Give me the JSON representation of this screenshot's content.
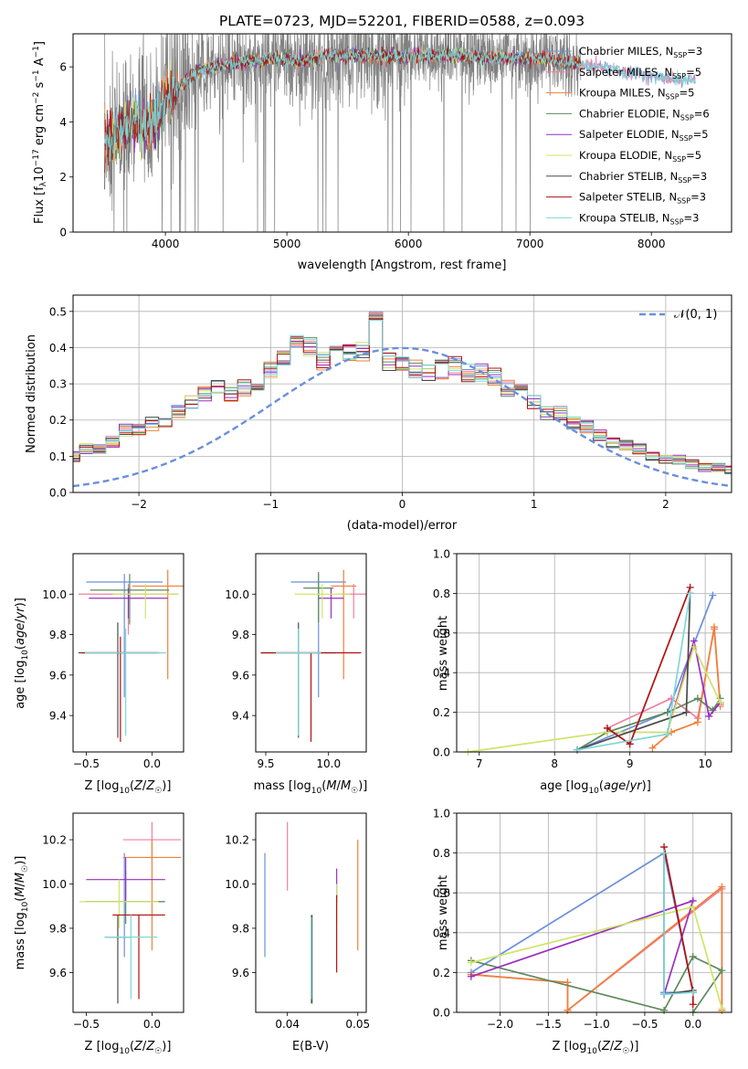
{
  "figure": {
    "title": "PLATE=0723, MJD=52201, FIBERID=0588, z=0.093"
  },
  "colors": {
    "Chabrier MILES": "#6a8fdc",
    "Salpeter MILES": "#f07fa0",
    "Kroupa MILES": "#f08038",
    "Chabrier ELODIE": "#5b8a5c",
    "Salpeter ELODIE": "#9a2fbf",
    "Kroupa ELODIE": "#cfe46a",
    "Chabrier STELIB": "#4a4a4a",
    "Salpeter STELIB": "#b01010",
    "Kroupa STELIB": "#7ed8d8",
    "data": "#808080"
  },
  "chart_data": [
    {
      "id": "spectrum",
      "type": "line",
      "xlabel": "wavelength [Angstrom, rest frame]",
      "ylabel": "Flux [f_λ 10^-17 erg cm^-2 s^-1 A^-1]",
      "xlim": [
        3240,
        8660
      ],
      "ylim": [
        0,
        7.2
      ],
      "xticks": [
        4000,
        5000,
        6000,
        7000,
        8000
      ],
      "yticks": [
        0,
        2,
        4,
        6
      ],
      "legend_placement": "right",
      "legend": [
        {
          "name": "Chabrier MILES",
          "nssp": "3"
        },
        {
          "name": "Salpeter MILES",
          "nssp": "5"
        },
        {
          "name": "Kroupa MILES",
          "nssp": "5"
        },
        {
          "name": "Chabrier ELODIE",
          "nssp": "6"
        },
        {
          "name": "Salpeter ELODIE",
          "nssp": "5"
        },
        {
          "name": "Kroupa ELODIE",
          "nssp": "5"
        },
        {
          "name": "Chabrier STELIB",
          "nssp": "3"
        },
        {
          "name": "Salpeter STELIB",
          "nssp": "3"
        },
        {
          "name": "Kroupa STELIB",
          "nssp": "3"
        }
      ],
      "continuum": {
        "x": [
          3500,
          3600,
          3700,
          3800,
          3900,
          4000,
          4100,
          4200,
          4300,
          4500,
          4700,
          4900,
          5100,
          5300,
          5600,
          6000,
          6400,
          6800,
          7100,
          7400,
          7600,
          7800,
          8000,
          8200,
          8400
        ],
        "y": [
          3.1,
          3.6,
          3.9,
          3.8,
          4.0,
          4.8,
          5.2,
          5.6,
          5.9,
          6.1,
          6.2,
          6.3,
          6.2,
          6.4,
          6.4,
          6.4,
          6.4,
          6.3,
          6.3,
          6.1,
          6.0,
          5.8,
          5.7,
          5.5,
          5.5
        ]
      },
      "data_range": [
        3500,
        7420
      ],
      "model_range": [
        3500,
        8360
      ]
    },
    {
      "id": "residuals",
      "type": "line",
      "xlabel": "(data-model)/error",
      "ylabel": "Normed distribution",
      "xlim": [
        -2.5,
        2.5
      ],
      "ylim": [
        0,
        0.545
      ],
      "xticks": [
        -2,
        -1,
        0,
        1,
        2
      ],
      "yticks": [
        0.0,
        0.1,
        0.2,
        0.3,
        0.4,
        0.5
      ],
      "legend_placement": "top-right",
      "reference": {
        "name": "𝒩(0, 1)",
        "mean": 0,
        "sigma": 1
      },
      "bin_width": 0.1,
      "base_hist": [
        0.03,
        0.03,
        0.04,
        0.04,
        0.04,
        0.05,
        0.05,
        0.06,
        0.07,
        0.08,
        0.09,
        0.1,
        0.12,
        0.12,
        0.14,
        0.17,
        0.17,
        0.19,
        0.19,
        0.22,
        0.25,
        0.27,
        0.29,
        0.27,
        0.29,
        0.3,
        0.34,
        0.37,
        0.43,
        0.4,
        0.36,
        0.41,
        0.38,
        0.39,
        0.49,
        0.36,
        0.35,
        0.34,
        0.33,
        0.34,
        0.35,
        0.33,
        0.33,
        0.32,
        0.29,
        0.28,
        0.25,
        0.22,
        0.22,
        0.19,
        0.18,
        0.16,
        0.14,
        0.13,
        0.12,
        0.1,
        0.09,
        0.09,
        0.08,
        0.07,
        0.07,
        0.06,
        0.06,
        0.05,
        0.05,
        0.04,
        0.04,
        0.03,
        0.03,
        0.03,
        0.03,
        0.02,
        0.02
      ]
    },
    {
      "id": "age-vs-Z",
      "type": "scatter",
      "xlabel": "Z [log10(Z/Z☉)]",
      "ylabel": "age  [log10(age/yr)]",
      "xlim": [
        -0.6,
        0.24
      ],
      "ylim": [
        9.22,
        10.2
      ],
      "xticks": [
        -0.5,
        0.0
      ],
      "yticks": [
        9.4,
        9.6,
        9.8,
        10.0
      ],
      "points": [
        {
          "model": "Chabrier MILES",
          "x": -0.21,
          "y": 10.06,
          "xerr": 0.29,
          "yerr": [
            0.57,
            0.04
          ]
        },
        {
          "model": "Salpeter MILES",
          "x": -0.18,
          "y": 10.0,
          "xerr": 0.38,
          "yerr": [
            0.2,
            0.05
          ]
        },
        {
          "model": "Kroupa MILES",
          "x": 0.12,
          "y": 10.04,
          "xerr": 0.27,
          "yerr": [
            0.46,
            0.08
          ]
        },
        {
          "model": "Chabrier ELODIE",
          "x": -0.17,
          "y": 10.02,
          "xerr": 0.3,
          "yerr": [
            0.17,
            0.08
          ]
        },
        {
          "model": "Salpeter ELODIE",
          "x": -0.18,
          "y": 9.98,
          "xerr": 0.3,
          "yerr": [
            0.1,
            0.05
          ]
        },
        {
          "model": "Kroupa ELODIE",
          "x": -0.05,
          "y": 10.0,
          "xerr": 0.25,
          "yerr": [
            0.12,
            0.05
          ]
        },
        {
          "model": "Chabrier STELIB",
          "x": -0.26,
          "y": 9.71,
          "xerr": 0.3,
          "yerr": [
            0.42,
            0.15
          ]
        },
        {
          "model": "Salpeter STELIB",
          "x": -0.24,
          "y": 9.71,
          "xerr": 0.3,
          "yerr": [
            0.44,
            0.08
          ]
        },
        {
          "model": "Kroupa STELIB",
          "x": -0.2,
          "y": 9.71,
          "xerr": 0.31,
          "yerr": [
            0.41,
            0.12
          ]
        }
      ]
    },
    {
      "id": "age-vs-mass",
      "type": "scatter",
      "xlabel": "mass [log10(M/M☉)]",
      "ylabel": "",
      "xlim": [
        9.42,
        10.3
      ],
      "ylim": [
        9.22,
        10.2
      ],
      "xticks": [
        9.5,
        10.0
      ],
      "yticks": [
        9.4,
        9.6,
        9.8,
        10.0
      ],
      "points": [
        {
          "model": "Chabrier MILES",
          "x": 9.92,
          "y": 10.06,
          "xerr": 0.22,
          "yerr": [
            0.57,
            0.04
          ]
        },
        {
          "model": "Salpeter MILES",
          "x": 10.2,
          "y": 10.0,
          "xerr": 0.1,
          "yerr": [
            0.12,
            0.05
          ]
        },
        {
          "model": "Kroupa MILES",
          "x": 10.12,
          "y": 10.04,
          "xerr": 0.1,
          "yerr": [
            0.46,
            0.08
          ]
        },
        {
          "model": "Chabrier ELODIE",
          "x": 9.92,
          "y": 10.03,
          "xerr": 0.12,
          "yerr": [
            0.17,
            0.08
          ]
        },
        {
          "model": "Salpeter ELODIE",
          "x": 10.02,
          "y": 9.98,
          "xerr": 0.1,
          "yerr": [
            0.1,
            0.05
          ]
        },
        {
          "model": "Kroupa ELODIE",
          "x": 9.95,
          "y": 10.0,
          "xerr": 0.22,
          "yerr": [
            0.12,
            0.05
          ]
        },
        {
          "model": "Chabrier STELIB",
          "x": 9.76,
          "y": 9.71,
          "xerr": 0.3,
          "yerr": [
            0.42,
            0.15
          ]
        },
        {
          "model": "Salpeter STELIB",
          "x": 9.86,
          "y": 9.71,
          "xerr": 0.4,
          "yerr": [
            0.44,
            0.0
          ]
        },
        {
          "model": "Kroupa STELIB",
          "x": 9.76,
          "y": 9.71,
          "xerr": 0.18,
          "yerr": [
            0.41,
            0.12
          ]
        }
      ]
    },
    {
      "id": "weight-vs-age",
      "type": "line",
      "xlabel": "age  [log10(age/yr)]",
      "ylabel": "mass weight",
      "xlim": [
        6.7,
        10.35
      ],
      "ylim": [
        0,
        1.0
      ],
      "xticks": [
        7,
        8,
        9,
        10
      ],
      "yticks": [
        0.0,
        0.2,
        0.4,
        0.6,
        0.8,
        1.0
      ],
      "series": [
        {
          "model": "Chabrier MILES",
          "x": [
            8.3,
            9.5,
            10.1
          ],
          "y": [
            0.01,
            0.2,
            0.79
          ]
        },
        {
          "model": "Salpeter MILES",
          "x": [
            8.7,
            9.55,
            9.9,
            10.12,
            10.2
          ],
          "y": [
            0.12,
            0.27,
            0.17,
            0.62,
            0.23
          ]
        },
        {
          "model": "Kroupa MILES",
          "x": [
            9.3,
            9.55,
            9.9,
            10.12,
            10.2
          ],
          "y": [
            0.02,
            0.1,
            0.15,
            0.63,
            0.24
          ]
        },
        {
          "model": "Chabrier ELODIE",
          "x": [
            8.3,
            8.7,
            9.5,
            9.9,
            10.1,
            10.2
          ],
          "y": [
            0.01,
            0.1,
            0.2,
            0.27,
            0.21,
            0.27
          ]
        },
        {
          "model": "Salpeter ELODIE",
          "x": [
            8.7,
            9.5,
            9.85,
            10.05,
            10.2
          ],
          "y": [
            0.1,
            0.1,
            0.56,
            0.18,
            0.25
          ]
        },
        {
          "model": "Kroupa ELODIE",
          "x": [
            6.85,
            8.7,
            9.5,
            9.85,
            10.2
          ],
          "y": [
            0.0,
            0.1,
            0.1,
            0.53,
            0.25
          ]
        },
        {
          "model": "Chabrier STELIB",
          "x": [
            8.3,
            9.75,
            9.8
          ],
          "y": [
            0.01,
            0.2,
            0.8
          ]
        },
        {
          "model": "Salpeter STELIB",
          "x": [
            8.7,
            9.0,
            9.8
          ],
          "y": [
            0.12,
            0.04,
            0.83
          ]
        },
        {
          "model": "Kroupa STELIB",
          "x": [
            8.3,
            9.5,
            9.8
          ],
          "y": [
            0.01,
            0.09,
            0.8
          ]
        }
      ]
    },
    {
      "id": "mass-vs-Z",
      "type": "scatter",
      "xlabel": "Z [log10(Z/Z☉)]",
      "ylabel": "mass [log10(M/M☉)]",
      "xlim": [
        -0.6,
        0.24
      ],
      "ylim": [
        9.42,
        10.32
      ],
      "xticks": [
        -0.5,
        0.0
      ],
      "yticks": [
        9.6,
        9.8,
        10.0,
        10.2
      ],
      "points": [
        {
          "model": "Chabrier MILES",
          "x": -0.21,
          "y": 9.92,
          "xerr": 0.3,
          "yerr": [
            0.25,
            0.22
          ]
        },
        {
          "model": "Salpeter MILES",
          "x": 0.0,
          "y": 10.2,
          "xerr": 0.22,
          "yerr": [
            0.1,
            0.08
          ]
        },
        {
          "model": "Kroupa MILES",
          "x": 0.0,
          "y": 10.12,
          "xerr": 0.22,
          "yerr": [
            0.42,
            0.08
          ]
        },
        {
          "model": "Chabrier ELODIE",
          "x": -0.2,
          "y": 9.92,
          "xerr": 0.3,
          "yerr": [
            0.1,
            0.14
          ]
        },
        {
          "model": "Salpeter ELODIE",
          "x": -0.2,
          "y": 10.02,
          "xerr": 0.3,
          "yerr": [
            0.1,
            0.1
          ]
        },
        {
          "model": "Kroupa ELODIE",
          "x": -0.25,
          "y": 9.92,
          "xerr": 0.3,
          "yerr": [
            0.12,
            0.1
          ]
        },
        {
          "model": "Chabrier STELIB",
          "x": -0.26,
          "y": 9.76,
          "xerr": 0.1,
          "yerr": [
            0.3,
            0.1
          ]
        },
        {
          "model": "Salpeter STELIB",
          "x": -0.1,
          "y": 9.86,
          "xerr": 0.2,
          "yerr": [
            0.38,
            0.0
          ]
        },
        {
          "model": "Kroupa STELIB",
          "x": -0.16,
          "y": 9.76,
          "xerr": 0.2,
          "yerr": [
            0.28,
            0.1
          ]
        }
      ]
    },
    {
      "id": "mass-vs-EBV",
      "type": "scatter",
      "xlabel": "E(B-V)",
      "ylabel": "",
      "xlim": [
        0.0355,
        0.0512
      ],
      "ylim": [
        9.42,
        10.32
      ],
      "xticks": [
        0.04,
        0.05
      ],
      "yticks": [
        9.6,
        9.8,
        10.0,
        10.2
      ],
      "points": [
        {
          "model": "Chabrier MILES",
          "x": 0.0368,
          "y": 9.92,
          "yerr": [
            0.25,
            0.22
          ]
        },
        {
          "model": "Salpeter MILES",
          "x": 0.04,
          "y": 10.2,
          "yerr": [
            0.23,
            0.08
          ]
        },
        {
          "model": "Kroupa MILES",
          "x": 0.05,
          "y": 10.12,
          "yerr": [
            0.42,
            0.08
          ]
        },
        {
          "model": "Chabrier ELODIE",
          "x": 0.0434,
          "y": 9.76,
          "yerr": [
            0.3,
            0.1
          ]
        },
        {
          "model": "Salpeter ELODIE",
          "x": 0.047,
          "y": 10.02,
          "yerr": [
            0.1,
            0.05
          ]
        },
        {
          "model": "Kroupa ELODIE",
          "x": 0.047,
          "y": 9.92,
          "yerr": [
            0.1,
            0.08
          ]
        },
        {
          "model": "Chabrier STELIB",
          "x": 0.0435,
          "y": 9.76,
          "yerr": [
            0.3,
            0.1
          ]
        },
        {
          "model": "Salpeter STELIB",
          "x": 0.047,
          "y": 9.86,
          "yerr": [
            0.26,
            0.09
          ]
        },
        {
          "model": "Kroupa STELIB",
          "x": 0.0434,
          "y": 9.76,
          "yerr": [
            0.28,
            0.09
          ]
        }
      ]
    },
    {
      "id": "weight-vs-Z",
      "type": "line",
      "xlabel": "Z [log10(Z/Z☉)]",
      "ylabel": "mass weight",
      "xlim": [
        -2.45,
        0.4
      ],
      "ylim": [
        0,
        1.0
      ],
      "xticks": [
        -2.0,
        -1.5,
        -1.0,
        -0.5,
        0.0
      ],
      "yticks": [
        0.0,
        0.2,
        0.4,
        0.6,
        0.8,
        1.0
      ],
      "series": [
        {
          "model": "Chabrier MILES",
          "x": [
            -2.3,
            -0.3,
            0.0,
            -0.3
          ],
          "y": [
            0.2,
            0.8,
            0.1,
            0.1
          ]
        },
        {
          "model": "Salpeter MILES",
          "x": [
            -2.3,
            -1.3,
            -1.3,
            0.3,
            0.3
          ],
          "y": [
            0.19,
            0.15,
            0.01,
            0.62,
            0.01
          ]
        },
        {
          "model": "Kroupa MILES",
          "x": [
            -2.3,
            -1.3,
            -1.3,
            0.3,
            0.3
          ],
          "y": [
            0.19,
            0.15,
            0.01,
            0.63,
            0.01
          ]
        },
        {
          "model": "Chabrier ELODIE",
          "x": [
            -2.3,
            -0.3,
            0.0,
            0.3,
            0.0
          ],
          "y": [
            0.26,
            0.01,
            0.28,
            0.21,
            0.0
          ]
        },
        {
          "model": "Salpeter ELODIE",
          "x": [
            -2.3,
            0.0,
            -0.3
          ],
          "y": [
            0.18,
            0.56,
            0.09
          ]
        },
        {
          "model": "Kroupa ELODIE",
          "x": [
            -2.3,
            0.0,
            0.3
          ],
          "y": [
            0.25,
            0.53,
            0.02
          ]
        },
        {
          "model": "Chabrier STELIB",
          "x": [
            -0.3,
            -0.3,
            0.0
          ],
          "y": [
            0.8,
            0.09,
            0.11
          ]
        },
        {
          "model": "Salpeter STELIB",
          "x": [
            -0.3,
            0.0,
            0.0
          ],
          "y": [
            0.83,
            0.1,
            0.04
          ]
        },
        {
          "model": "Kroupa STELIB",
          "x": [
            -0.3,
            -0.3,
            0.0
          ],
          "y": [
            0.8,
            0.09,
            0.1
          ]
        }
      ]
    }
  ]
}
